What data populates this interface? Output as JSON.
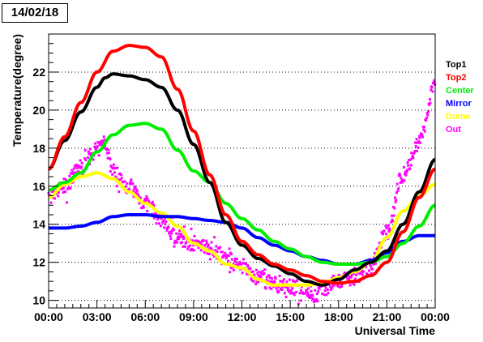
{
  "chart_data": {
    "type": "line",
    "title": "14/02/18",
    "xlabel": "Universal Time",
    "ylabel": "Temperature(degree)",
    "xlim": [
      0,
      24
    ],
    "ylim": [
      9.6,
      24.0
    ],
    "x_ticks": [
      {
        "value": 0,
        "label": "00:00"
      },
      {
        "value": 3,
        "label": "03:00"
      },
      {
        "value": 6,
        "label": "06:00"
      },
      {
        "value": 9,
        "label": "09:00"
      },
      {
        "value": 12,
        "label": "12:00"
      },
      {
        "value": 15,
        "label": "15:00"
      },
      {
        "value": 18,
        "label": "18:00"
      },
      {
        "value": 21,
        "label": "21:00"
      },
      {
        "value": 24,
        "label": "00:00"
      }
    ],
    "y_ticks": [
      10,
      12,
      14,
      16,
      18,
      20,
      22
    ],
    "grid": "horizontal dotted",
    "legend_position": "right",
    "series": [
      {
        "name": "Top1",
        "color": "#000000",
        "x": [
          0,
          1,
          2,
          3,
          3.5,
          4,
          5,
          6,
          7,
          8,
          9,
          10,
          11,
          12,
          13,
          14,
          15,
          16,
          17,
          18,
          19,
          20,
          21,
          22,
          23,
          24
        ],
        "y": [
          16.9,
          18.4,
          19.9,
          21.2,
          21.7,
          21.9,
          21.8,
          21.6,
          21.2,
          20.0,
          18.2,
          16.2,
          14.1,
          12.9,
          12.2,
          11.8,
          11.4,
          11.0,
          10.8,
          11.1,
          11.6,
          12.0,
          12.6,
          14.0,
          15.7,
          17.4
        ]
      },
      {
        "name": "Top2",
        "color": "#ff0000",
        "x": [
          0,
          1,
          2,
          3,
          4,
          5,
          6,
          7,
          8,
          9,
          10,
          11,
          12,
          13,
          14,
          15,
          16,
          17,
          18,
          19,
          20,
          21,
          22,
          23,
          24
        ],
        "y": [
          16.9,
          18.6,
          20.4,
          22.0,
          23.1,
          23.4,
          23.3,
          22.8,
          21.1,
          18.9,
          16.6,
          14.5,
          13.1,
          12.4,
          11.9,
          11.6,
          11.3,
          11.0,
          10.9,
          11.0,
          11.3,
          12.0,
          13.6,
          15.4,
          16.9
        ]
      },
      {
        "name": "Center",
        "color": "#00ee00",
        "x": [
          0,
          1,
          2,
          3,
          4,
          5,
          6,
          7,
          8,
          9,
          10,
          11,
          12,
          13,
          14,
          15,
          16,
          17,
          18,
          19,
          20,
          21,
          22,
          23,
          24
        ],
        "y": [
          15.8,
          16.2,
          16.7,
          17.8,
          18.7,
          19.2,
          19.3,
          19.0,
          17.9,
          16.8,
          16.2,
          15.1,
          14.3,
          13.7,
          13.1,
          12.7,
          12.3,
          12.0,
          11.9,
          11.9,
          12.0,
          12.3,
          13.0,
          13.9,
          15.0
        ]
      },
      {
        "name": "Mirror",
        "color": "#0000ff",
        "x": [
          0,
          1,
          2,
          3,
          4,
          5,
          6,
          7,
          8,
          9,
          10,
          11,
          12,
          13,
          14,
          15,
          16,
          17,
          18,
          19,
          20,
          21,
          22,
          23,
          24
        ],
        "y": [
          13.8,
          13.8,
          13.9,
          14.1,
          14.4,
          14.5,
          14.5,
          14.4,
          14.4,
          14.3,
          14.2,
          14.1,
          13.8,
          13.3,
          12.9,
          12.6,
          12.3,
          12.1,
          11.9,
          11.9,
          12.1,
          12.5,
          13.1,
          13.4,
          13.4
        ]
      },
      {
        "name": "Dome",
        "color": "#ffff00",
        "x": [
          0,
          1,
          2,
          3,
          4,
          5,
          6,
          7,
          8,
          9,
          10,
          11,
          12,
          13,
          14,
          15,
          16,
          17,
          18,
          19,
          20,
          21,
          22,
          23,
          24
        ],
        "y": [
          15.4,
          16.1,
          16.5,
          16.7,
          16.4,
          15.7,
          15.1,
          14.6,
          13.9,
          13.0,
          12.6,
          11.9,
          11.7,
          11.1,
          10.8,
          10.8,
          10.8,
          10.9,
          11.2,
          11.5,
          12.0,
          13.3,
          14.7,
          15.5,
          16.1
        ]
      },
      {
        "name": "Out",
        "color": "#ff00ff",
        "x": [
          0,
          1,
          2,
          3,
          3.5,
          4,
          5,
          6,
          7,
          8,
          9,
          10,
          11,
          12,
          13,
          14,
          15,
          16,
          16.5,
          17,
          18,
          19,
          20,
          21,
          22,
          23,
          24
        ],
        "y": [
          15.3,
          16.0,
          17.0,
          17.9,
          18.3,
          16.8,
          16.0,
          15.1,
          14.2,
          13.3,
          13.0,
          12.8,
          12.2,
          11.7,
          11.2,
          10.9,
          10.7,
          10.6,
          10.2,
          10.6,
          11.0,
          11.2,
          11.8,
          13.6,
          16.6,
          18.3,
          21.4
        ]
      }
    ]
  }
}
